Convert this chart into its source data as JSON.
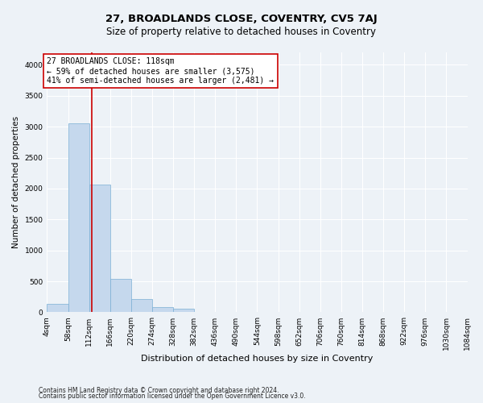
{
  "title": "27, BROADLANDS CLOSE, COVENTRY, CV5 7AJ",
  "subtitle": "Size of property relative to detached houses in Coventry",
  "xlabel": "Distribution of detached houses by size in Coventry",
  "ylabel": "Number of detached properties",
  "bin_labels": [
    "4sqm",
    "58sqm",
    "112sqm",
    "166sqm",
    "220sqm",
    "274sqm",
    "328sqm",
    "382sqm",
    "436sqm",
    "490sqm",
    "544sqm",
    "598sqm",
    "652sqm",
    "706sqm",
    "760sqm",
    "814sqm",
    "868sqm",
    "922sqm",
    "976sqm",
    "1030sqm",
    "1084sqm"
  ],
  "bin_edges": [
    4,
    58,
    112,
    166,
    220,
    274,
    328,
    382,
    436,
    490,
    544,
    598,
    652,
    706,
    760,
    814,
    868,
    922,
    976,
    1030,
    1084
  ],
  "bar_heights": [
    130,
    3050,
    2060,
    535,
    210,
    80,
    55,
    0,
    0,
    0,
    0,
    0,
    0,
    0,
    0,
    0,
    0,
    0,
    0,
    0
  ],
  "bar_color": "#c5d8ed",
  "bar_edge_color": "#7bafd4",
  "property_size": 118,
  "red_line_color": "#cc0000",
  "annotation_text": "27 BROADLANDS CLOSE: 118sqm\n← 59% of detached houses are smaller (3,575)\n41% of semi-detached houses are larger (2,481) →",
  "annotation_box_color": "#ffffff",
  "annotation_box_edge": "#cc0000",
  "ylim": [
    0,
    4200
  ],
  "yticks": [
    0,
    500,
    1000,
    1500,
    2000,
    2500,
    3000,
    3500,
    4000
  ],
  "footnote1": "Contains HM Land Registry data © Crown copyright and database right 2024.",
  "footnote2": "Contains public sector information licensed under the Open Government Licence v3.0.",
  "background_color": "#edf2f7",
  "grid_color": "#ffffff",
  "title_fontsize": 9.5,
  "subtitle_fontsize": 8.5,
  "xlabel_fontsize": 8,
  "ylabel_fontsize": 7.5,
  "tick_fontsize": 6.5,
  "annotation_fontsize": 7,
  "footnote_fontsize": 5.5
}
